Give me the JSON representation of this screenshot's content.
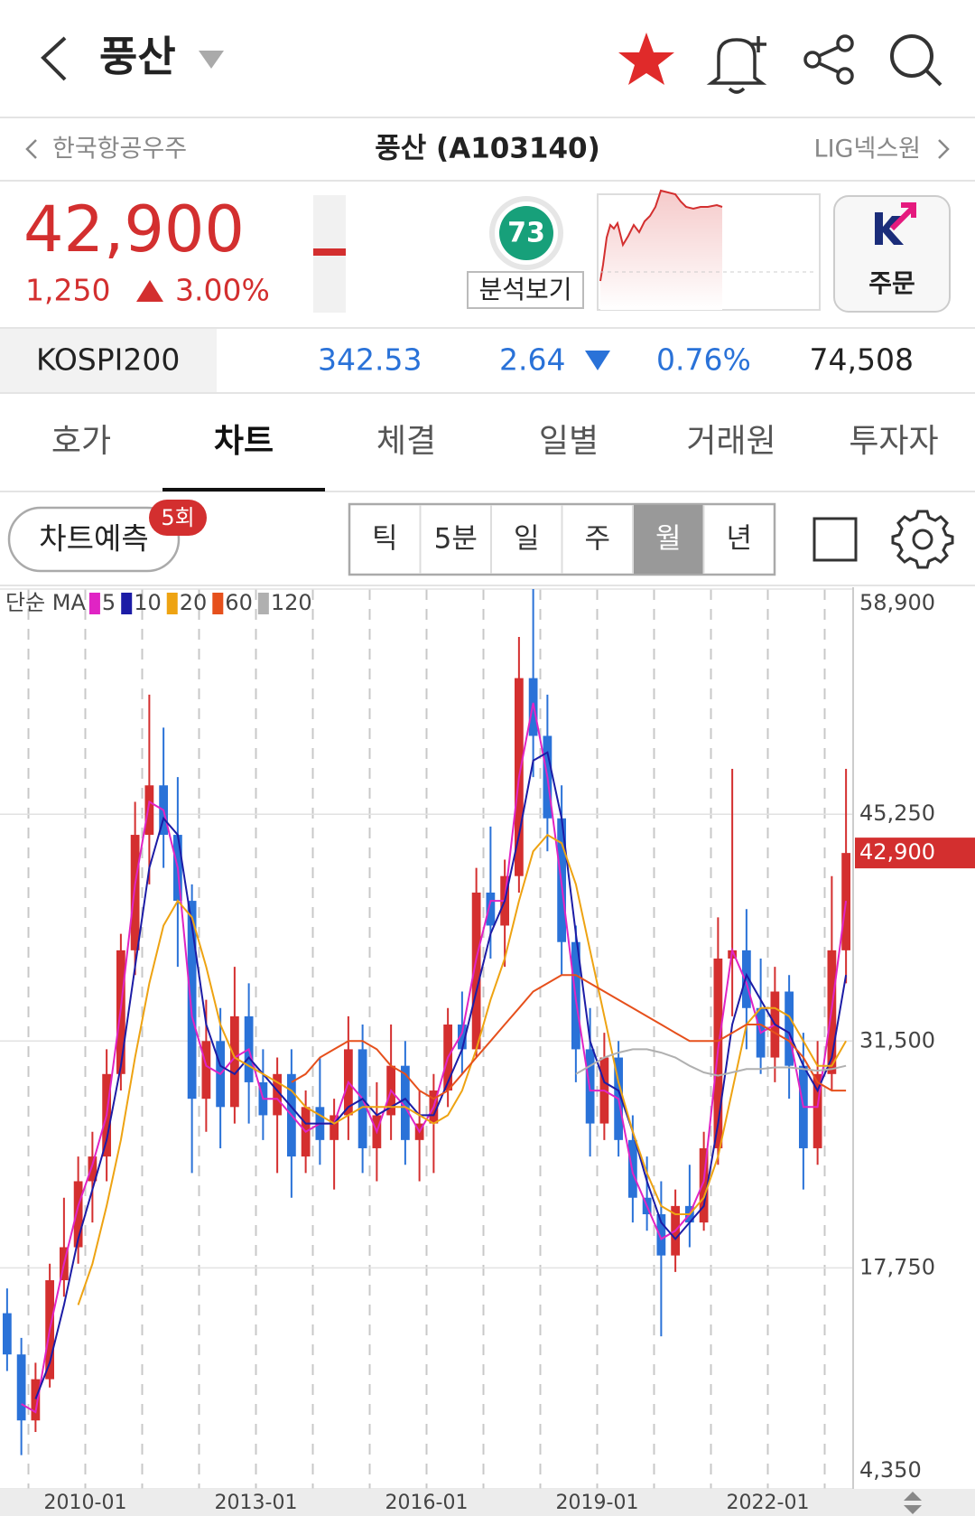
{
  "header": {
    "title": "풍산"
  },
  "nav": {
    "prev": "한국항공우주",
    "current": "풍산 (A103140)",
    "next": "LIG넥스원"
  },
  "quote": {
    "price": "42,900",
    "change": "1,250",
    "change_pct": "3.00%",
    "score": "73",
    "analysis": "분석보기",
    "order": "주문"
  },
  "index": {
    "name": "KOSPI200",
    "value": "342.53",
    "change": "2.64",
    "change_pct": "0.76%",
    "volume": "74,508"
  },
  "tabs": [
    "호가",
    "차트",
    "체결",
    "일별",
    "거래원",
    "투자자"
  ],
  "active_tab": "차트",
  "toolbar": {
    "predict": "차트예측",
    "badge": "5회",
    "periods": [
      "틱",
      "5분",
      "일",
      "주",
      "월",
      "년"
    ],
    "active_period": "월"
  },
  "chart_data": {
    "type": "candlestick",
    "legend_title": "단순 MA",
    "up_color": "#d42f2f",
    "down_color": "#2a72d8",
    "x": [
      "2008-07",
      "2008-10",
      "2009-01",
      "2009-04",
      "2009-07",
      "2009-10",
      "2010-01",
      "2010-04",
      "2010-07",
      "2010-10",
      "2011-01",
      "2011-04",
      "2011-07",
      "2011-10",
      "2012-01",
      "2012-04",
      "2012-07",
      "2012-10",
      "2013-01",
      "2013-04",
      "2013-07",
      "2013-10",
      "2014-01",
      "2014-04",
      "2014-07",
      "2014-10",
      "2015-01",
      "2015-04",
      "2015-07",
      "2015-10",
      "2016-01",
      "2016-04",
      "2016-07",
      "2016-10",
      "2017-01",
      "2017-04",
      "2017-07",
      "2017-10",
      "2018-01",
      "2018-04",
      "2018-07",
      "2018-10",
      "2019-01",
      "2019-04",
      "2019-07",
      "2019-10",
      "2020-01",
      "2020-04",
      "2020-07",
      "2020-10",
      "2021-01",
      "2021-04",
      "2021-07",
      "2021-10",
      "2022-01",
      "2022-04",
      "2022-07",
      "2022-10",
      "2023-01",
      "2023-04"
    ],
    "open": [
      15000,
      12500,
      8500,
      11000,
      17000,
      19000,
      23000,
      24500,
      29500,
      37000,
      44000,
      47000,
      44000,
      40000,
      28000,
      31500,
      27500,
      33000,
      29000,
      27000,
      29500,
      24500,
      27500,
      25500,
      27000,
      31000,
      25000,
      27000,
      30000,
      25500,
      26500,
      28500,
      32500,
      31000,
      40500,
      38500,
      41500,
      53500,
      50000,
      45000,
      37500,
      31000,
      26500,
      30500,
      25500,
      22000,
      21000,
      18500,
      21500,
      20500,
      25000,
      36500,
      37000,
      33500,
      30500,
      34500,
      30000,
      25000,
      29500,
      37000
    ],
    "high": [
      16500,
      13500,
      12000,
      18000,
      22000,
      24500,
      26000,
      31000,
      38000,
      46000,
      52500,
      50500,
      47500,
      41000,
      34000,
      33500,
      36000,
      35000,
      31000,
      30500,
      31000,
      28500,
      30500,
      28000,
      33000,
      32500,
      29000,
      32500,
      31500,
      28500,
      29500,
      33500,
      34500,
      42000,
      44500,
      42500,
      56000,
      58900,
      52500,
      47000,
      38500,
      33500,
      32000,
      31500,
      27000,
      24500,
      23000,
      22500,
      24000,
      26000,
      39000,
      48000,
      39500,
      36500,
      36000,
      35500,
      32000,
      31500,
      41500,
      48000
    ],
    "low": [
      11500,
      6400,
      7800,
      10500,
      16000,
      18000,
      20500,
      23000,
      28500,
      35500,
      41000,
      42000,
      36000,
      23500,
      26000,
      25000,
      26500,
      26500,
      25500,
      23500,
      22000,
      23500,
      24000,
      22500,
      25500,
      23500,
      23000,
      25500,
      24000,
      23000,
      23500,
      27500,
      29500,
      30500,
      36500,
      36000,
      40500,
      47500,
      43000,
      35500,
      29000,
      24500,
      25500,
      24500,
      20500,
      20000,
      13600,
      17500,
      19000,
      20000,
      24000,
      33000,
      31000,
      29500,
      29000,
      28000,
      22500,
      24000,
      28500,
      35000
    ],
    "close": [
      12500,
      8500,
      11000,
      17000,
      19000,
      23000,
      24500,
      29500,
      37000,
      44000,
      47000,
      44000,
      40000,
      28000,
      31500,
      27500,
      33000,
      29000,
      27000,
      29500,
      24500,
      27500,
      25500,
      27000,
      31000,
      25000,
      27000,
      30000,
      25500,
      26500,
      28500,
      32500,
      31000,
      40500,
      38500,
      41500,
      53500,
      50000,
      45000,
      37500,
      31000,
      26500,
      30500,
      25500,
      22000,
      21000,
      18500,
      21500,
      20500,
      25000,
      36500,
      37000,
      33500,
      30500,
      34500,
      30000,
      25000,
      29500,
      37000,
      42900
    ],
    "series": [
      {
        "name": "5",
        "color": "#e024c4",
        "values": [
          null,
          9500,
          9000,
          14000,
          18000,
          21500,
          24000,
          27000,
          33500,
          41000,
          46000,
          45500,
          42000,
          33000,
          30000,
          29500,
          30500,
          31000,
          28000,
          28000,
          27000,
          26000,
          26500,
          26500,
          29000,
          28000,
          26000,
          28500,
          27500,
          26000,
          27500,
          30500,
          32000,
          36500,
          40000,
          40000,
          47500,
          52000,
          47500,
          41000,
          34000,
          28500,
          28500,
          28000,
          23500,
          21500,
          19500,
          20000,
          21000,
          23000,
          31000,
          37000,
          35000,
          32000,
          32500,
          32000,
          27500,
          27500,
          33500,
          40000
        ]
      },
      {
        "name": "10",
        "color": "#1c1ca6",
        "values": [
          null,
          null,
          9800,
          12000,
          15500,
          19500,
          22500,
          25500,
          30000,
          36000,
          42000,
          45000,
          44000,
          38500,
          32500,
          30000,
          29500,
          30500,
          29500,
          28500,
          27500,
          26500,
          26500,
          26500,
          27500,
          28000,
          27000,
          27500,
          28000,
          27000,
          27000,
          29000,
          31000,
          34500,
          38000,
          40000,
          44000,
          48500,
          49000,
          45000,
          38000,
          31500,
          29000,
          28500,
          26000,
          23000,
          20500,
          19500,
          20500,
          21500,
          26500,
          32500,
          35500,
          34000,
          32500,
          32000,
          30000,
          28500,
          30500,
          35500
        ]
      },
      {
        "name": "20",
        "color": "#eea312",
        "values": [
          null,
          null,
          null,
          null,
          null,
          15500,
          18000,
          21500,
          25500,
          30500,
          35000,
          38500,
          40000,
          39000,
          36000,
          32500,
          30500,
          30000,
          29500,
          29000,
          28500,
          27500,
          27000,
          26500,
          27000,
          27500,
          27500,
          27500,
          27500,
          27000,
          26500,
          27000,
          28500,
          31000,
          34000,
          36500,
          40000,
          43000,
          44000,
          43500,
          41000,
          37000,
          33000,
          29000,
          26000,
          23500,
          21500,
          21000,
          21000,
          22000,
          24500,
          28500,
          32500,
          33500,
          33500,
          33000,
          31500,
          30000,
          30000,
          31500
        ]
      },
      {
        "name": "60",
        "color": "#e6501c",
        "values": [
          null,
          null,
          null,
          null,
          null,
          null,
          null,
          null,
          null,
          null,
          null,
          null,
          null,
          null,
          null,
          null,
          null,
          null,
          null,
          null,
          29000,
          29500,
          30500,
          31000,
          31500,
          31500,
          31000,
          30000,
          29500,
          28500,
          28000,
          28500,
          29500,
          30500,
          31500,
          32500,
          33500,
          34500,
          35000,
          35500,
          35500,
          35000,
          34500,
          34000,
          33500,
          33000,
          32500,
          32000,
          31500,
          31500,
          31500,
          32000,
          32500,
          32500,
          32000,
          31500,
          30500,
          29000,
          28500,
          28500
        ]
      },
      {
        "name": "120",
        "color": "#b0b0b0",
        "values": [
          null,
          null,
          null,
          null,
          null,
          null,
          null,
          null,
          null,
          null,
          null,
          null,
          null,
          null,
          null,
          null,
          null,
          null,
          null,
          null,
          null,
          null,
          null,
          null,
          null,
          null,
          null,
          null,
          null,
          null,
          null,
          null,
          null,
          null,
          null,
          null,
          null,
          null,
          null,
          null,
          29500,
          30000,
          30500,
          30800,
          31000,
          31000,
          30800,
          30500,
          30000,
          29600,
          29400,
          29600,
          29800,
          29800,
          29900,
          29900,
          29800,
          29700,
          29800,
          30000
        ]
      }
    ],
    "xlim": [
      "2008-07",
      "2023-07"
    ],
    "xticks": [
      "2010-01",
      "2013-01",
      "2016-01",
      "2019-01",
      "2022-01"
    ],
    "ylim": [
      4350,
      58900
    ],
    "yticks": [
      {
        "value": 4350,
        "label": "4,350"
      },
      {
        "value": 17750,
        "label": "17,750"
      },
      {
        "value": 31500,
        "label": "31,500"
      },
      {
        "value": 45250,
        "label": "45,250"
      },
      {
        "value": 58900,
        "label": "58,900"
      }
    ],
    "last_price": {
      "value": 42900,
      "label": "42,900"
    },
    "grid": true
  }
}
